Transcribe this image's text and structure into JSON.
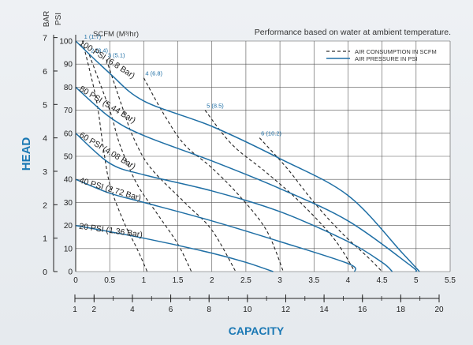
{
  "chart_data": {
    "type": "line",
    "title": "Performance based on water at ambient temperature.",
    "y_axis_label": "HEAD",
    "x_axis_label": "CAPACITY",
    "psi_axis": {
      "unit": "PSI",
      "range": [
        0,
        100
      ],
      "ticks": [
        0,
        10,
        20,
        30,
        40,
        50,
        60,
        70,
        80,
        90,
        100
      ]
    },
    "bar_axis": {
      "unit": "BAR",
      "ticks": [
        0,
        1,
        2,
        3,
        4,
        5,
        6,
        7
      ]
    },
    "x_axis_top": {
      "range": [
        0,
        5.5
      ],
      "ticks": [
        "0",
        "0.5",
        "1",
        "1.5",
        "2",
        "2.5",
        "3",
        "3.5",
        "4",
        "4.5",
        "5",
        "5.5"
      ]
    },
    "x_axis_bottom": {
      "ticks": [
        "1",
        "2",
        "4",
        "6",
        "8",
        "10",
        "12",
        "14",
        "16",
        "18",
        "20"
      ]
    },
    "scfm_header": "SCFM (M³/hr)",
    "legend": {
      "position": "top-right",
      "items": [
        {
          "label": "AIR CONSUMPTION IN SCFM",
          "style": "dashed"
        },
        {
          "label": "AIR PRESSURE IN PSI",
          "style": "solid"
        }
      ]
    },
    "pressure_series": [
      {
        "name": "20 PSI (1.36 Bar)",
        "points": [
          [
            0,
            20
          ],
          [
            1,
            14.5
          ],
          [
            2,
            8
          ],
          [
            2.5,
            4
          ],
          [
            2.9,
            0
          ]
        ]
      },
      {
        "name": "40 PSI (2.72 Bar)",
        "points": [
          [
            0,
            40
          ],
          [
            0.5,
            34
          ],
          [
            1,
            30
          ],
          [
            2,
            22
          ],
          [
            3,
            13
          ],
          [
            4,
            3.5
          ],
          [
            4.1,
            0
          ]
        ]
      },
      {
        "name": "60 PSI (4.08 Bar)",
        "points": [
          [
            0,
            60
          ],
          [
            0.5,
            47
          ],
          [
            1,
            42
          ],
          [
            2,
            35
          ],
          [
            3,
            26
          ],
          [
            4,
            13
          ],
          [
            4.5,
            4
          ],
          [
            4.65,
            0
          ]
        ]
      },
      {
        "name": "80 PSI (5.44 Bar)",
        "points": [
          [
            0,
            80
          ],
          [
            0.5,
            67
          ],
          [
            1,
            59
          ],
          [
            2,
            48
          ],
          [
            3,
            36
          ],
          [
            4,
            22
          ],
          [
            4.9,
            3
          ],
          [
            5,
            0
          ]
        ]
      },
      {
        "name": "100 PSI (6.8 Bar)",
        "points": [
          [
            0,
            100
          ],
          [
            0.5,
            86
          ],
          [
            1,
            74
          ],
          [
            2,
            63
          ],
          [
            3,
            49
          ],
          [
            4,
            33
          ],
          [
            4.8,
            8
          ],
          [
            5.05,
            0
          ]
        ]
      }
    ],
    "scfm_series": [
      {
        "label": "1 (1.7)",
        "points": [
          [
            0.1,
            100
          ],
          [
            0.3,
            75
          ],
          [
            0.4,
            55
          ],
          [
            0.5,
            38
          ],
          [
            0.7,
            22
          ],
          [
            0.9,
            10
          ],
          [
            1.05,
            0
          ]
        ]
      },
      {
        "label": "2 (3.4)",
        "points": [
          [
            0.2,
            94
          ],
          [
            0.5,
            70
          ],
          [
            0.65,
            55
          ],
          [
            0.9,
            38
          ],
          [
            1.2,
            25
          ],
          [
            1.5,
            12
          ],
          [
            1.7,
            0
          ]
        ]
      },
      {
        "label": "3 (5.1)",
        "points": [
          [
            0.45,
            92
          ],
          [
            0.7,
            70
          ],
          [
            0.85,
            58
          ],
          [
            1.1,
            45
          ],
          [
            1.6,
            30
          ],
          [
            2,
            18
          ],
          [
            2.35,
            0
          ]
        ]
      },
      {
        "label": "4 (6.8)",
        "points": [
          [
            1.0,
            84
          ],
          [
            1.3,
            68
          ],
          [
            1.6,
            55
          ],
          [
            2,
            45
          ],
          [
            2.4,
            33
          ],
          [
            2.8,
            18
          ],
          [
            3.05,
            0
          ]
        ]
      },
      {
        "label": "5 (8.5)",
        "points": [
          [
            1.9,
            70
          ],
          [
            2.3,
            55
          ],
          [
            2.8,
            43
          ],
          [
            3.3,
            30
          ],
          [
            3.8,
            14
          ],
          [
            4.1,
            0
          ]
        ]
      },
      {
        "label": "6 (10.2)",
        "points": [
          [
            2.7,
            58
          ],
          [
            3.1,
            45
          ],
          [
            3.5,
            30
          ],
          [
            3.9,
            17
          ],
          [
            4.3,
            6
          ],
          [
            4.5,
            0
          ]
        ]
      }
    ]
  }
}
